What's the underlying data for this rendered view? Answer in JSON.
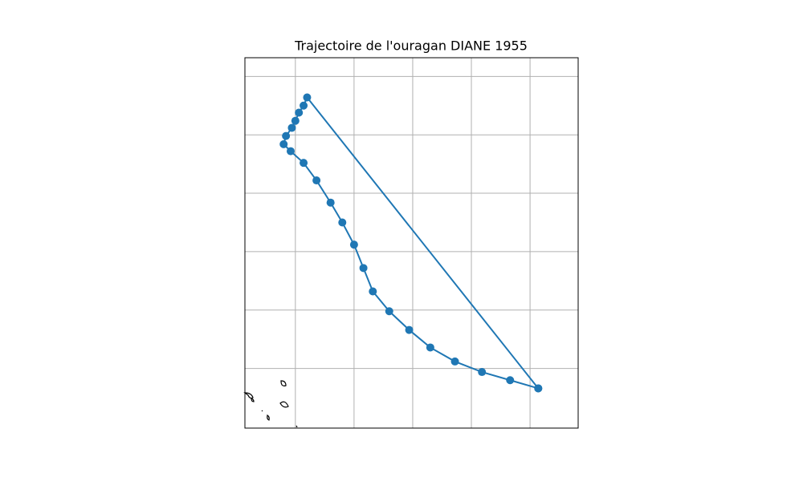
{
  "chart_data": {
    "type": "line",
    "title": "Trajectoire de l'ouragan DIANE 1955",
    "x": [
      -59.3,
      -61.7,
      -64.1,
      -66.4,
      -68.5,
      -70.3,
      -72.0,
      -73.4,
      -74.2,
      -75.0,
      -76.0,
      -77.0,
      -78.2,
      -79.3,
      -80.4,
      -81.0,
      -80.8,
      -80.3,
      -80.0,
      -79.7,
      -79.3,
      -79.0,
      -59.3
    ],
    "series": [
      {
        "color": "#1f77b4",
        "values": [
          18.3,
          19.0,
          19.7,
          20.6,
          21.8,
          23.3,
          24.9,
          26.6,
          28.6,
          30.6,
          32.5,
          34.2,
          36.1,
          37.6,
          38.6,
          39.2,
          39.9,
          40.6,
          41.2,
          41.9,
          42.5,
          43.2,
          18.3
        ]
      }
    ],
    "xlim": [
      -84.3,
      -55.9
    ],
    "ylim": [
      14.9,
      46.6
    ],
    "xticks": [
      -80,
      -75,
      -70,
      -65,
      -60
    ],
    "yticks": [
      20,
      25,
      30,
      35,
      40,
      45
    ],
    "grid": true
  }
}
